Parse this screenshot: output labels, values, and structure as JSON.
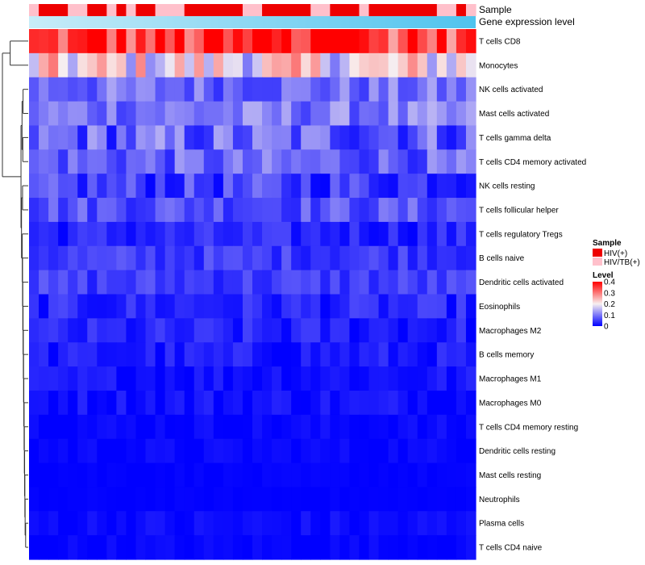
{
  "chart_data": {
    "type": "heatmap",
    "rows": [
      "T cells CD8",
      "Monocytes",
      "NK cells activated",
      "Mast cells activated",
      "T cells gamma delta",
      "T cells CD4 memory activated",
      "NK cells resting",
      "T cells follicular helper",
      "T cells regulatory  Tregs",
      "B cells naive",
      "Dendritic cells activated",
      "Eosinophils",
      "Macrophages M2",
      "B cells memory",
      "Macrophages M1",
      "Macrophages M0",
      "T cells CD4 memory resting",
      "Dendritic cells resting",
      "Mast cells resting",
      "Neutrophils",
      "Plasma cells",
      "T cells CD4 naive"
    ],
    "n_columns": 46,
    "sample_groups": [
      1,
      0,
      0,
      0,
      1,
      1,
      0,
      0,
      1,
      0,
      1,
      0,
      0,
      1,
      1,
      1,
      0,
      0,
      0,
      0,
      0,
      0,
      1,
      1,
      0,
      0,
      0,
      0,
      0,
      1,
      1,
      0,
      0,
      0,
      1,
      0,
      0,
      0,
      0,
      0,
      0,
      0,
      1,
      1,
      0,
      1
    ],
    "annotation_tracks": [
      "Sample",
      "Gene expression level"
    ],
    "value_range": [
      0,
      0.4
    ],
    "legend": {
      "sample_title": "Sample",
      "sample_entries": [
        {
          "label": "HIV(+)",
          "color": "#ee0000"
        },
        {
          "label": "HIV/TB(+)",
          "color": "#ffc0cb"
        }
      ],
      "level_title": "Level",
      "level_ticks": [
        "0.4",
        "0.3",
        "0.2",
        "0.1",
        "0"
      ],
      "level_values": [
        0.4,
        0.3,
        0.2,
        0.1,
        0
      ]
    },
    "colors": {
      "low": "#0000ff",
      "mid": "#f8f0f0",
      "high": "#ff0000",
      "expr_start": "#c8ecf8",
      "expr_end": "#4fc3ee",
      "dendrogram": "#333333"
    }
  }
}
